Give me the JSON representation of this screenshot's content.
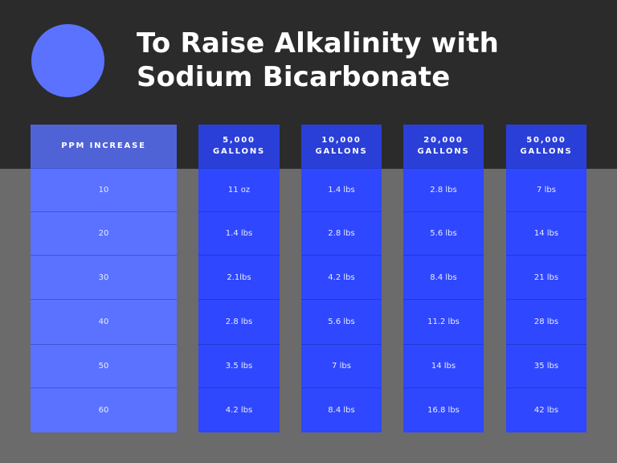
{
  "title": {
    "line1": "To Raise Alkalinity with",
    "line2": "Sodium Bicarbonate"
  },
  "colors": {
    "background_top": "#2b2b2b",
    "background_bottom": "#6b6b6b",
    "circle": "#5b72ff",
    "ppm_column": "#5a72ff",
    "gallon_columns": "#2f47ff"
  },
  "table": {
    "headers": [
      "PPM INCREASE",
      "5,000\nGALLONS",
      "10,000\nGALLONS",
      "20,000\nGALLONS",
      "50,000\nGALLONS"
    ],
    "rows": [
      [
        "10",
        "11 oz",
        "1.4 lbs",
        "2.8 lbs",
        "7 lbs"
      ],
      [
        "20",
        "1.4 lbs",
        "2.8 lbs",
        "5.6 lbs",
        "14 lbs"
      ],
      [
        "30",
        "2.1lbs",
        "4.2 lbs",
        "8.4 lbs",
        "21 lbs"
      ],
      [
        "40",
        "2.8 lbs",
        "5.6 lbs",
        "11.2 lbs",
        "28 lbs"
      ],
      [
        "50",
        "3.5 lbs",
        "7 lbs",
        "14 lbs",
        "35 lbs"
      ],
      [
        "60",
        "4.2 lbs",
        "8.4 lbs",
        "16.8 lbs",
        "42 lbs"
      ]
    ]
  }
}
